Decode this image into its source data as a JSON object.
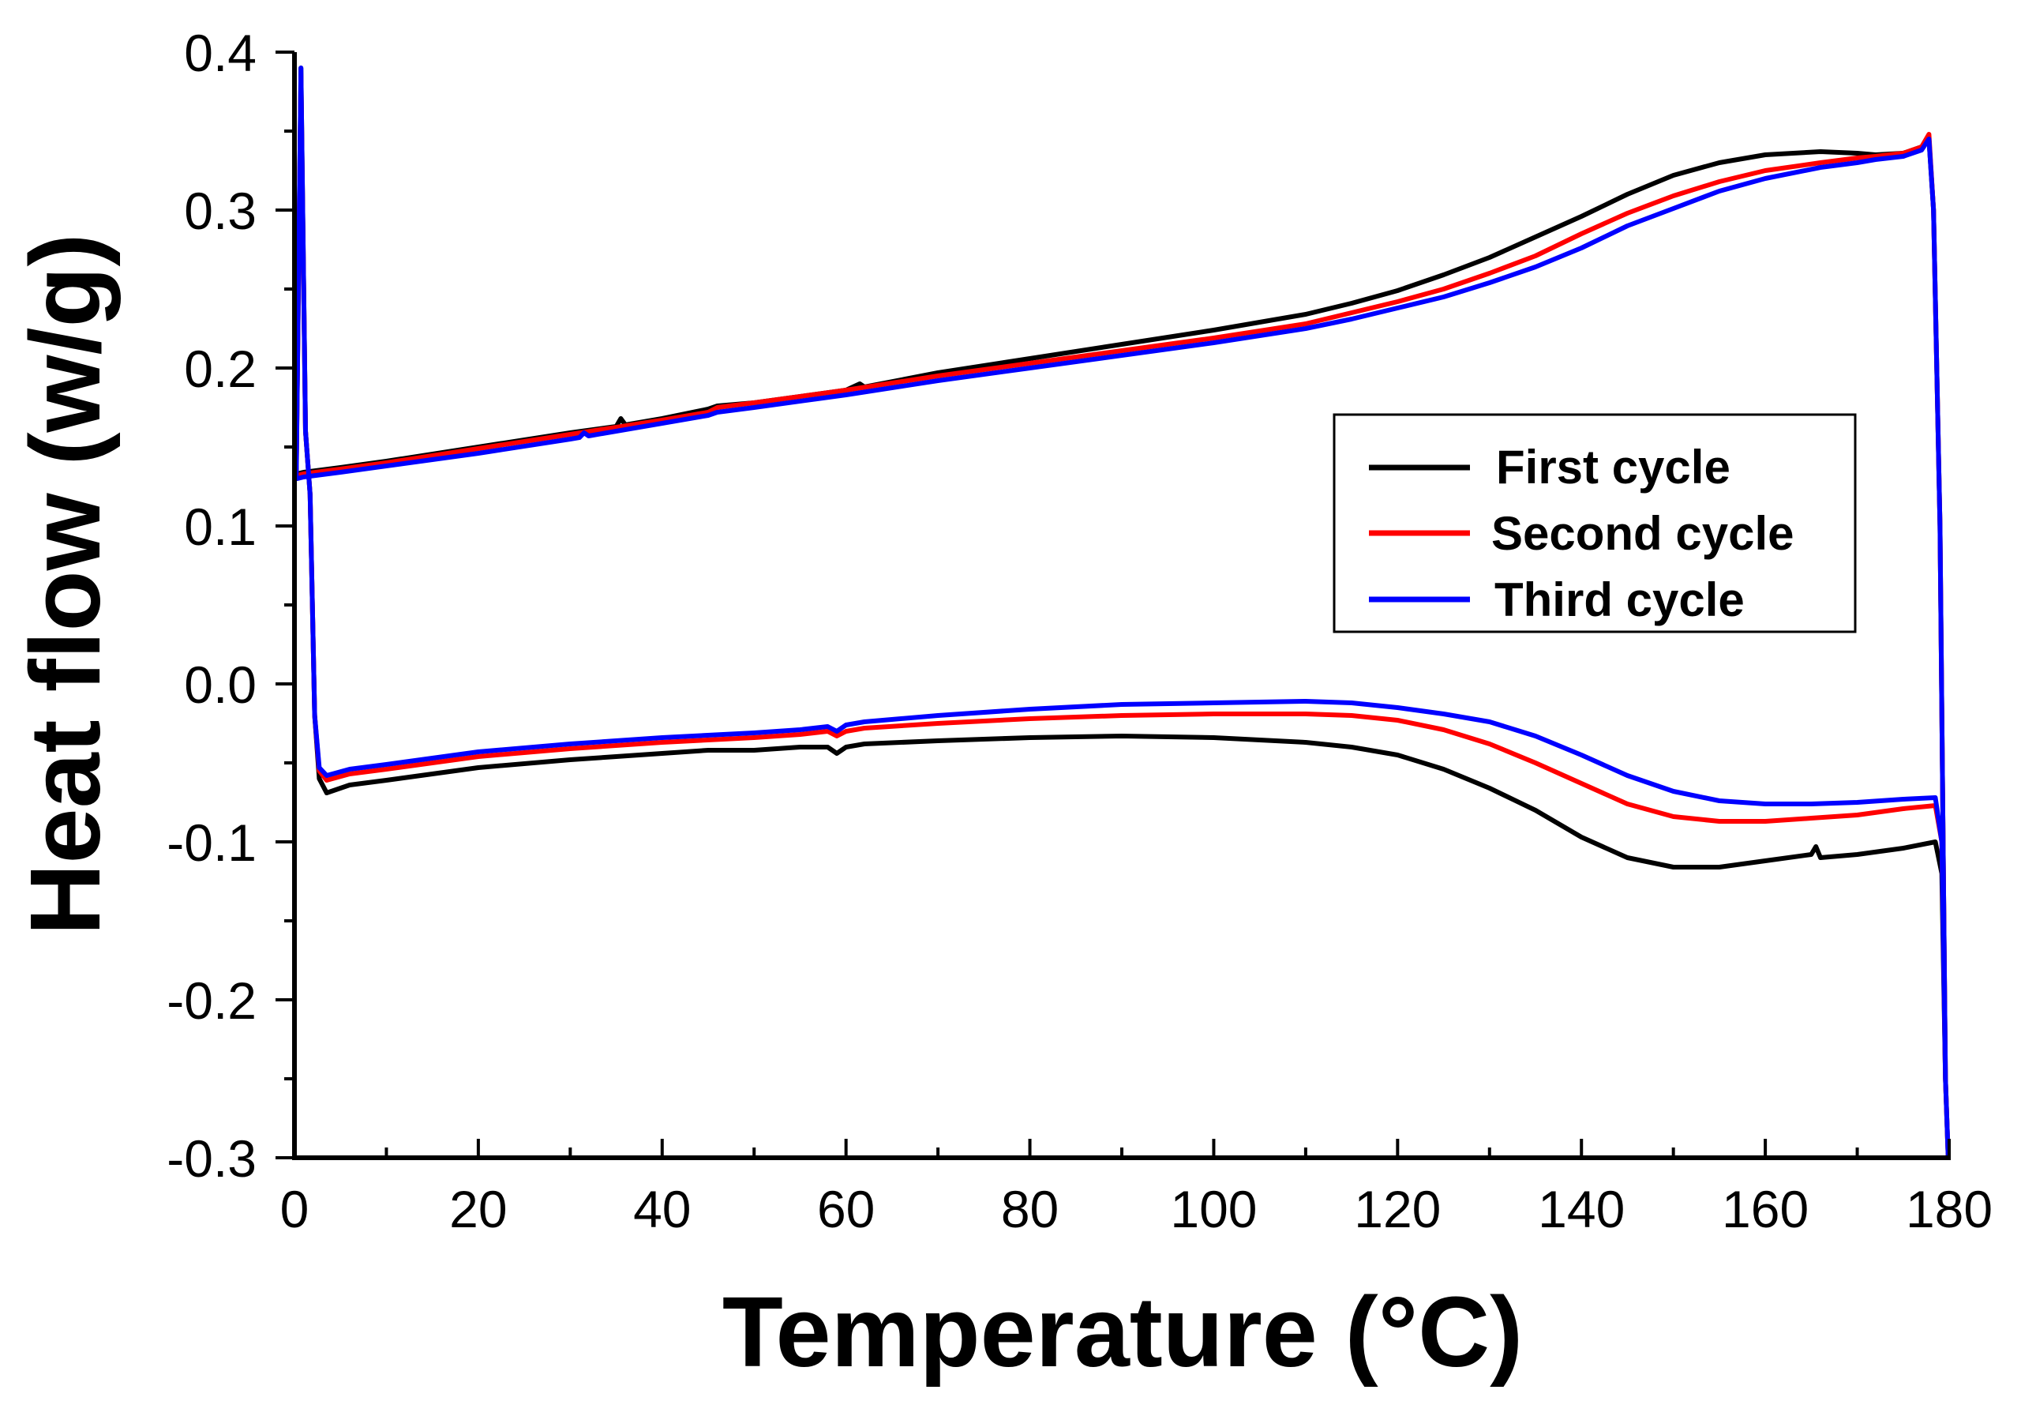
{
  "chart_data": {
    "type": "line",
    "title": "",
    "xlabel": "Temperature (°C)",
    "ylabel": "Heat flow (w/g)",
    "xlim": [
      0,
      180
    ],
    "ylim": [
      -0.3,
      0.4
    ],
    "x_ticks": [
      0,
      20,
      40,
      60,
      80,
      100,
      120,
      140,
      160,
      180
    ],
    "x_tick_labels": [
      "0",
      "20",
      "40",
      "60",
      "80",
      "100",
      "120",
      "140",
      "160",
      "180"
    ],
    "y_ticks": [
      -0.3,
      -0.2,
      -0.1,
      0.0,
      0.1,
      0.2,
      0.3,
      0.4
    ],
    "y_tick_labels": [
      "-0.3",
      "-0.2",
      "-0.1",
      "0.0",
      "0.1",
      "0.2",
      "0.3",
      "0.4"
    ],
    "grid": false,
    "legend_position": "center-right",
    "series": [
      {
        "name": "First cycle",
        "color": "#000000",
        "x": [
          0.2,
          0.7,
          1.2,
          1.7,
          2.2,
          2.7,
          3.5,
          6,
          10,
          20,
          30,
          35,
          40,
          45,
          50,
          55,
          58,
          59,
          60,
          62,
          70,
          80,
          90,
          100,
          110,
          115,
          120,
          125,
          130,
          135,
          140,
          145,
          150,
          155,
          160,
          165,
          165.5,
          166,
          170,
          175,
          178.5,
          179.2,
          179.6,
          179.9,
          179.9,
          179.6,
          179,
          178.3,
          177.8,
          177,
          175,
          172,
          170,
          166,
          160,
          155,
          150,
          145,
          140,
          135,
          130,
          125,
          120,
          115,
          110,
          100,
          90,
          80,
          70,
          62,
          61.5,
          60,
          50,
          46,
          45,
          40,
          36,
          35.5,
          35,
          30,
          20,
          10,
          5,
          1,
          0.3
        ],
        "y": [
          0.135,
          0.39,
          0.16,
          0.12,
          -0.02,
          -0.06,
          -0.069,
          -0.064,
          -0.061,
          -0.053,
          -0.048,
          -0.046,
          -0.044,
          -0.042,
          -0.042,
          -0.04,
          -0.04,
          -0.044,
          -0.04,
          -0.038,
          -0.036,
          -0.034,
          -0.033,
          -0.034,
          -0.037,
          -0.04,
          -0.045,
          -0.054,
          -0.066,
          -0.08,
          -0.097,
          -0.11,
          -0.116,
          -0.116,
          -0.112,
          -0.108,
          -0.103,
          -0.11,
          -0.108,
          -0.104,
          -0.1,
          -0.12,
          -0.25,
          -0.3,
          -0.3,
          -0.25,
          0.1,
          0.3,
          0.345,
          0.34,
          0.336,
          0.335,
          0.336,
          0.337,
          0.335,
          0.33,
          0.322,
          0.31,
          0.296,
          0.283,
          0.27,
          0.259,
          0.249,
          0.241,
          0.234,
          0.224,
          0.215,
          0.206,
          0.197,
          0.188,
          0.19,
          0.186,
          0.178,
          0.176,
          0.174,
          0.168,
          0.164,
          0.168,
          0.163,
          0.159,
          0.15,
          0.141,
          0.137,
          0.134,
          0.133
        ]
      },
      {
        "name": "Second cycle",
        "color": "#ff0000",
        "x": [
          0.2,
          0.7,
          1.2,
          1.7,
          2.2,
          2.7,
          3.5,
          6,
          10,
          20,
          30,
          40,
          50,
          55,
          58,
          59,
          60,
          62,
          70,
          80,
          90,
          100,
          110,
          115,
          120,
          125,
          130,
          135,
          140,
          145,
          150,
          155,
          160,
          165,
          170,
          175,
          178.5,
          179.2,
          179.6,
          179.9,
          179.9,
          179.6,
          179,
          178.3,
          177.8,
          177,
          175,
          172,
          170,
          166,
          160,
          155,
          150,
          145,
          140,
          135,
          130,
          125,
          120,
          115,
          110,
          100,
          90,
          80,
          70,
          60,
          50,
          46,
          45,
          40,
          30,
          20,
          10,
          5,
          1,
          0.3
        ],
        "y": [
          0.133,
          0.385,
          0.16,
          0.12,
          -0.02,
          -0.055,
          -0.061,
          -0.057,
          -0.054,
          -0.046,
          -0.041,
          -0.037,
          -0.034,
          -0.032,
          -0.03,
          -0.033,
          -0.03,
          -0.028,
          -0.025,
          -0.022,
          -0.02,
          -0.019,
          -0.019,
          -0.02,
          -0.023,
          -0.029,
          -0.038,
          -0.05,
          -0.063,
          -0.076,
          -0.084,
          -0.087,
          -0.087,
          -0.085,
          -0.083,
          -0.079,
          -0.077,
          -0.1,
          -0.25,
          -0.3,
          -0.3,
          -0.25,
          0.1,
          0.3,
          0.348,
          0.34,
          0.336,
          0.334,
          0.333,
          0.33,
          0.325,
          0.318,
          0.309,
          0.298,
          0.285,
          0.271,
          0.26,
          0.25,
          0.242,
          0.235,
          0.228,
          0.219,
          0.211,
          0.203,
          0.195,
          0.186,
          0.178,
          0.175,
          0.172,
          0.167,
          0.158,
          0.149,
          0.14,
          0.136,
          0.133,
          0.132
        ]
      },
      {
        "name": "Third cycle",
        "color": "#0000ff",
        "x": [
          0.2,
          0.7,
          1.2,
          1.7,
          2.2,
          2.7,
          3.5,
          6,
          10,
          20,
          30,
          40,
          50,
          55,
          58,
          59,
          60,
          62,
          70,
          80,
          90,
          100,
          110,
          115,
          120,
          125,
          130,
          135,
          140,
          145,
          150,
          155,
          160,
          165,
          170,
          175,
          178.5,
          179.2,
          179.6,
          179.9,
          179.9,
          179.6,
          179,
          178.3,
          177.8,
          177,
          175,
          172,
          170,
          166,
          160,
          155,
          150,
          145,
          140,
          135,
          130,
          125,
          120,
          115,
          110,
          100,
          90,
          80,
          70,
          60,
          50,
          46,
          45,
          40,
          32,
          31.5,
          31,
          30,
          20,
          10,
          5,
          1,
          0.3
        ],
        "y": [
          0.13,
          0.39,
          0.16,
          0.12,
          -0.02,
          -0.053,
          -0.058,
          -0.054,
          -0.051,
          -0.043,
          -0.038,
          -0.034,
          -0.031,
          -0.029,
          -0.027,
          -0.03,
          -0.026,
          -0.024,
          -0.02,
          -0.016,
          -0.013,
          -0.012,
          -0.011,
          -0.012,
          -0.015,
          -0.019,
          -0.024,
          -0.033,
          -0.045,
          -0.058,
          -0.068,
          -0.074,
          -0.076,
          -0.076,
          -0.075,
          -0.073,
          -0.072,
          -0.1,
          -0.25,
          -0.3,
          -0.3,
          -0.25,
          0.1,
          0.3,
          0.345,
          0.338,
          0.334,
          0.332,
          0.33,
          0.327,
          0.32,
          0.312,
          0.301,
          0.29,
          0.276,
          0.264,
          0.254,
          0.245,
          0.238,
          0.231,
          0.225,
          0.216,
          0.208,
          0.2,
          0.192,
          0.183,
          0.175,
          0.172,
          0.17,
          0.165,
          0.157,
          0.159,
          0.156,
          0.155,
          0.146,
          0.138,
          0.134,
          0.131,
          0.13
        ]
      }
    ]
  }
}
